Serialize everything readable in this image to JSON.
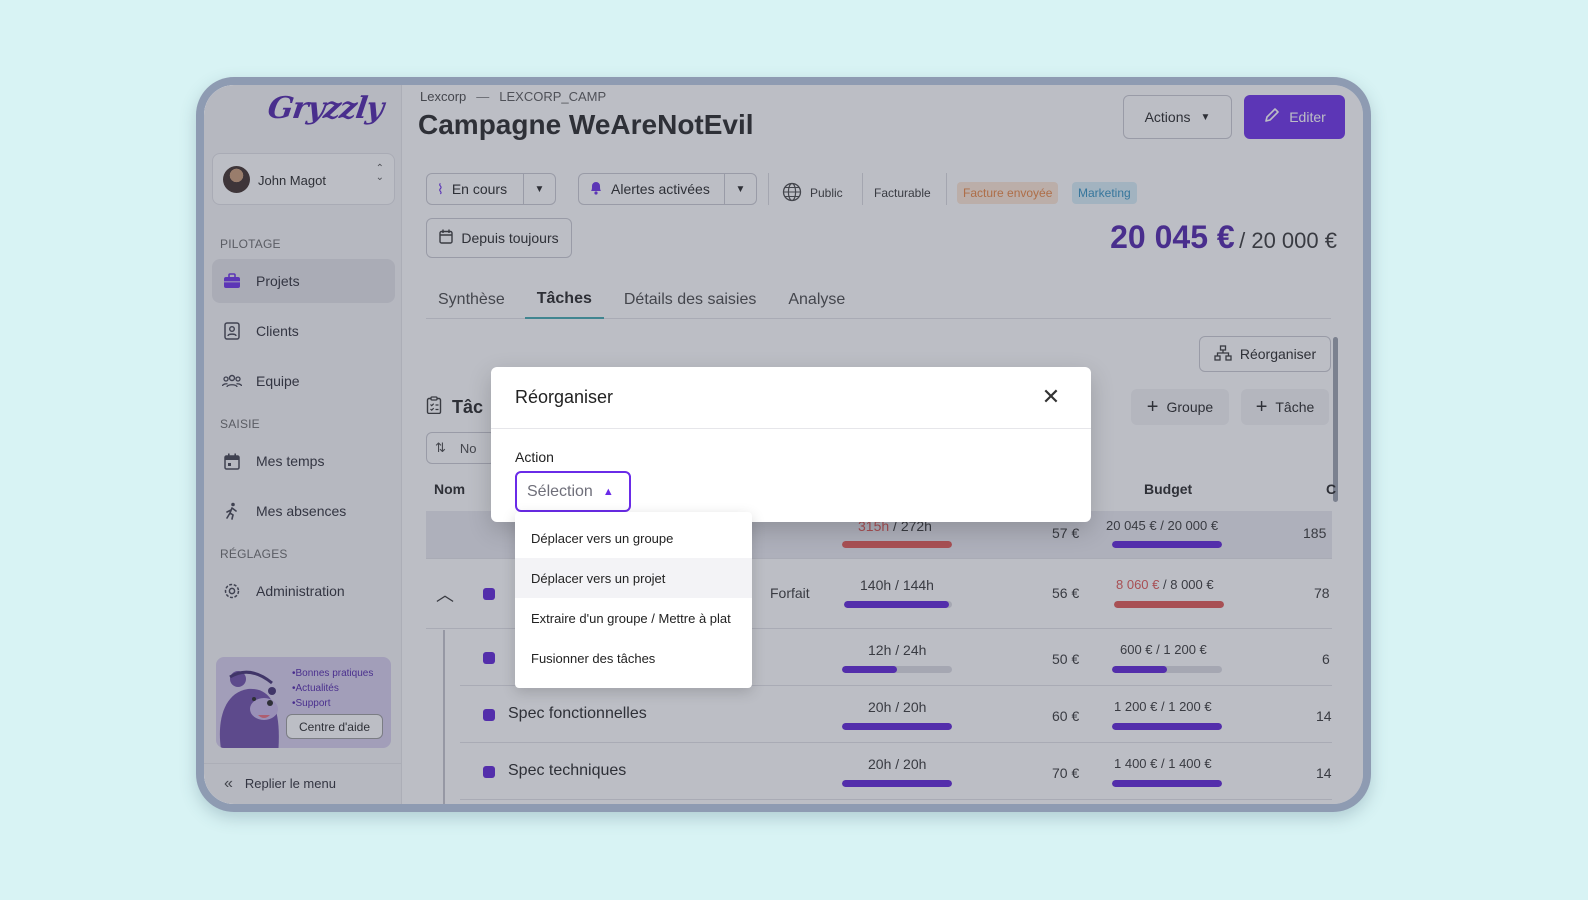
{
  "app": {
    "logo": "Gryzzly"
  },
  "user": {
    "name": "John Magot"
  },
  "sidebar": {
    "sections": [
      "PILOTAGE",
      "SAISIE",
      "RÉGLAGES"
    ],
    "items": [
      {
        "label": "Projets",
        "icon": "briefcase-icon"
      },
      {
        "label": "Clients",
        "icon": "contacts-icon"
      },
      {
        "label": "Equipe",
        "icon": "team-icon"
      },
      {
        "label": "Mes temps",
        "icon": "calendar-icon"
      },
      {
        "label": "Mes absences",
        "icon": "walking-icon"
      },
      {
        "label": "Administration",
        "icon": "gear-icon"
      }
    ],
    "help": {
      "bullets": [
        "•Bonnes pratiques",
        "•Actualités",
        "•Support"
      ],
      "button": "Centre d'aide"
    },
    "collapse": "Replier le menu"
  },
  "header": {
    "client": "Lexcorp",
    "separator": "—",
    "code": "LEXCORP_CAMP",
    "title": "Campagne WeAreNotEvil",
    "actions_label": "Actions",
    "edit_label": "Editer"
  },
  "status": {
    "state": "En cours",
    "alerts": "Alertes activées",
    "visibility": "Public",
    "billing": "Facturable",
    "tags": [
      "Facture envoyée",
      "Marketing"
    ],
    "since": "Depuis toujours"
  },
  "budget_summary": {
    "spent": "20 045 €",
    "total": "/ 20 000 €"
  },
  "tabs": [
    "Synthèse",
    "Tâches",
    "Détails des saisies",
    "Analyse"
  ],
  "tasks": {
    "reorganize_label": "Réorganiser",
    "title": "Tâc",
    "add_group": "Groupe",
    "add_task": "Tâche",
    "sort_label": "No",
    "columns": {
      "name": "Nom",
      "budget": "Budget",
      "extra": "C"
    },
    "total": {
      "time_spent": "315h",
      "time_total": "/ 272h",
      "time_progress": 1,
      "rate": "57 €",
      "budget_spent": "20 045 €",
      "budget_total": "/ 20 000 €",
      "budget_progress": 1,
      "extra": "185"
    },
    "rows": [
      {
        "name": "",
        "type": "Forfait",
        "time_spent": "140h",
        "time_total": "/ 144h",
        "time_progress": 0.97,
        "rate": "56 €",
        "budget_spent": "8 060 €",
        "budget_total": "/ 8 000 €",
        "budget_progress": 1,
        "over": true,
        "extra": "78"
      },
      {
        "name": "",
        "type": "",
        "time_spent": "12h",
        "time_total": "/ 24h",
        "time_progress": 0.5,
        "rate": "50 €",
        "budget_spent": "600 €",
        "budget_total": "/ 1 200 €",
        "budget_progress": 0.5,
        "over": false,
        "extra": "6"
      },
      {
        "name": "Spec fonctionnelles",
        "type": "",
        "time_spent": "20h",
        "time_total": "/ 20h",
        "time_progress": 1,
        "rate": "60 €",
        "budget_spent": "1 200 €",
        "budget_total": "/ 1 200 €",
        "budget_progress": 1,
        "over": false,
        "extra": "14"
      },
      {
        "name": "Spec techniques",
        "type": "",
        "time_spent": "20h",
        "time_total": "/ 20h",
        "time_progress": 1,
        "rate": "70 €",
        "budget_spent": "1 400 €",
        "budget_total": "/ 1 400 €",
        "budget_progress": 1,
        "over": false,
        "extra": "14"
      }
    ]
  },
  "modal": {
    "title": "Réorganiser",
    "field_label": "Action",
    "select_placeholder": "Sélection",
    "options": [
      "Déplacer vers un groupe",
      "Déplacer vers un projet",
      "Extraire d'un groupe / Mettre à plat",
      "Fusionner des tâches"
    ]
  },
  "colors": {
    "accent": "#6a2be8",
    "brand": "#4b1fa8",
    "danger": "#e0534f",
    "tab_underline": "#3da6ad"
  }
}
